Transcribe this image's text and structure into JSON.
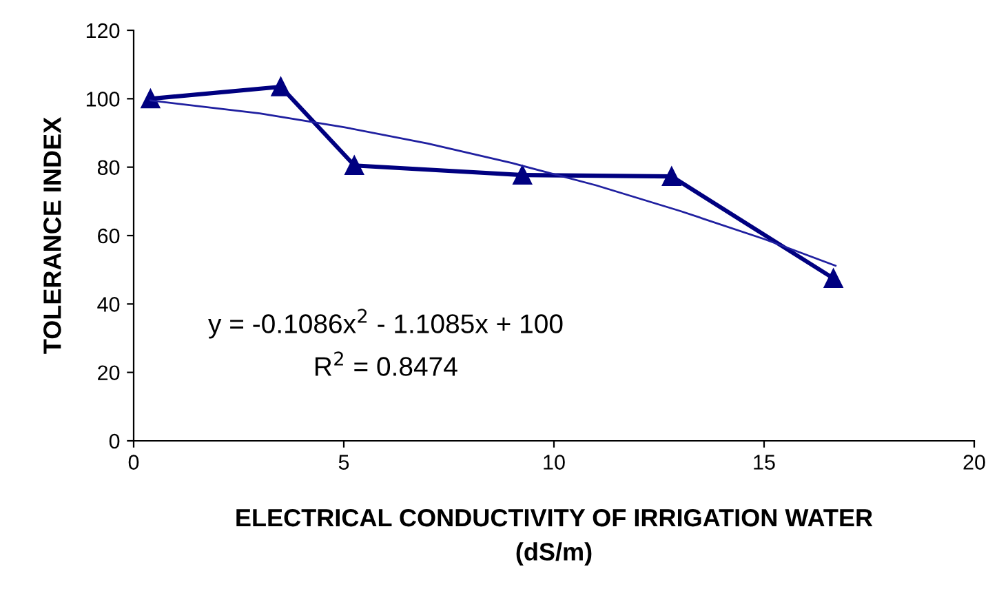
{
  "chart_data": {
    "type": "line",
    "xlabel": "ELECTRICAL CONDUCTIVITY OF IRRIGATION WATER\n(dS/m)",
    "ylabel": "TOLERANCE INDEX",
    "xlim": [
      0,
      20
    ],
    "xticks": [
      0,
      5,
      10,
      15,
      20
    ],
    "ylim": [
      0,
      120
    ],
    "yticks": [
      0,
      20,
      40,
      60,
      80,
      100,
      120
    ],
    "grid": false,
    "legend": false,
    "series": [
      {
        "color": "#000080",
        "marker": "triangle",
        "line_style": "solid",
        "x": [
          0.4,
          3.5,
          5.25,
          9.25,
          12.8,
          16.65
        ],
        "values": [
          100,
          103.5,
          80.5,
          77.7,
          77.3,
          47.5
        ]
      },
      {
        "type": "line",
        "color": "#2020a0",
        "marker": "none",
        "line_style": "solid",
        "x": [
          0.4,
          3,
          5,
          7,
          9,
          11,
          13,
          15,
          16.7
        ],
        "values": [
          99.5,
          95.7,
          91.7,
          86.9,
          81.2,
          74.7,
          67.2,
          59.0,
          51.2
        ]
      }
    ],
    "annotations": [
      "y = -0.1086x$^{2}$ - 1.1085x + 100",
      "R$^{2}$ = 0.8474"
    ]
  }
}
